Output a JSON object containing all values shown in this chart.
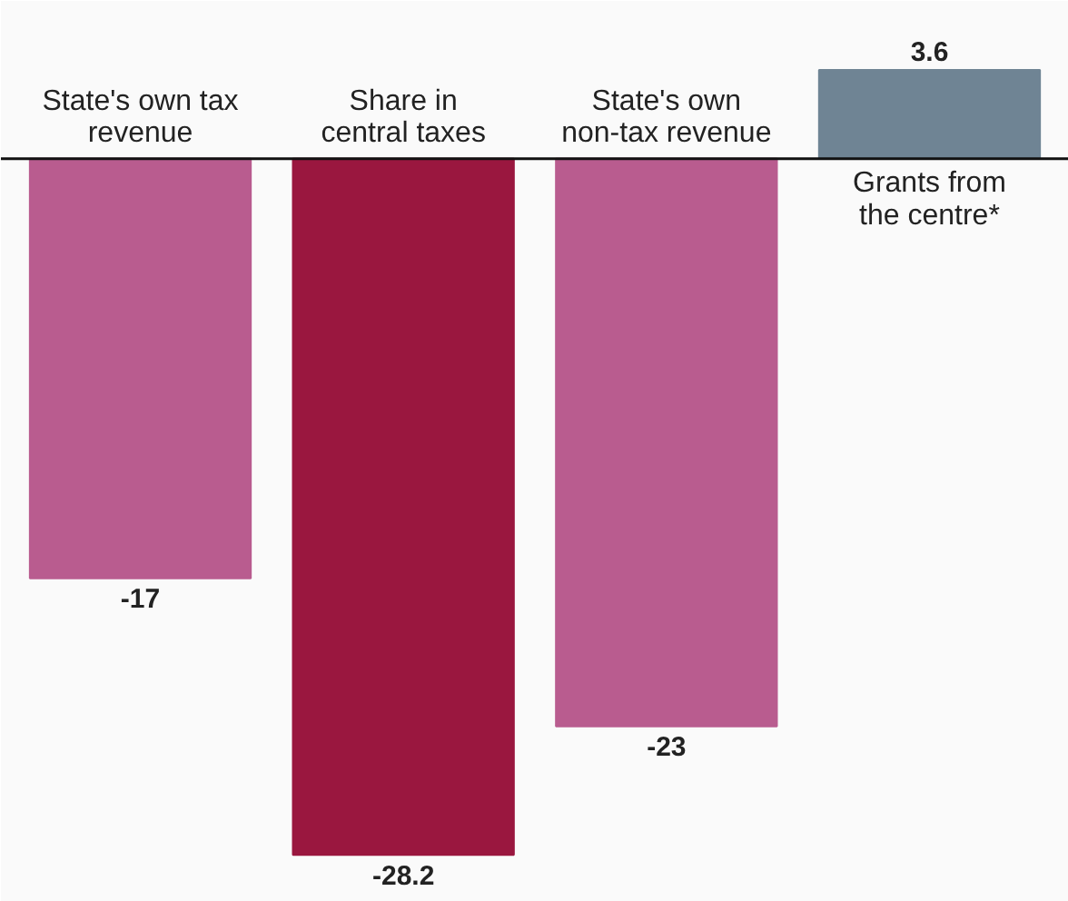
{
  "chart_data": {
    "type": "bar",
    "categories": [
      "State's own tax\nrevenue",
      "Share in\ncentral taxes",
      "State's own\nnon-tax revenue",
      "Grants from\nthe centre*"
    ],
    "values": [
      -17,
      -28.2,
      -23,
      3.6
    ],
    "colors": [
      "#b95c8f",
      "#9a173f",
      "#b95c8f",
      "#6f8494"
    ],
    "data_labels": true,
    "grid": false
  }
}
